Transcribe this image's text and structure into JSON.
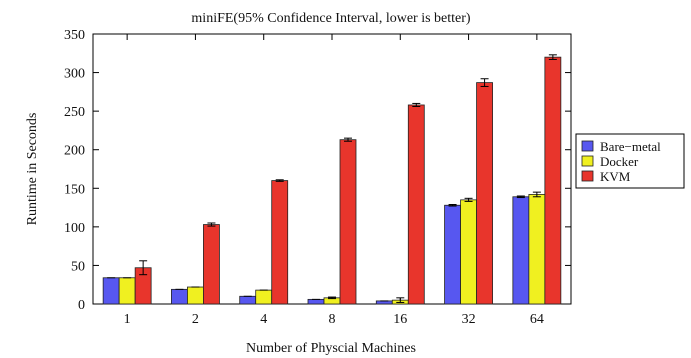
{
  "chart_data": {
    "type": "bar",
    "title": "miniFE(95% Confidence Interval, lower is better)",
    "xlabel": "Number of Physcial Machines",
    "ylabel": "Runtime in Seconds",
    "ylim": [
      0,
      350
    ],
    "yticks": [
      0,
      50,
      100,
      150,
      200,
      250,
      300,
      350
    ],
    "categories": [
      "1",
      "2",
      "4",
      "8",
      "16",
      "32",
      "64"
    ],
    "grid": false,
    "legend_position": "right",
    "series": [
      {
        "name": "Bare−metal",
        "color": "#5757f0",
        "values": [
          34,
          19,
          10,
          6,
          4,
          128,
          139
        ],
        "errors": [
          0,
          0,
          0,
          0,
          0,
          1,
          1
        ]
      },
      {
        "name": "Docker",
        "color": "#f0f020",
        "values": [
          34,
          22,
          18,
          8,
          5,
          135,
          142
        ],
        "errors": [
          0,
          0,
          0,
          1,
          3,
          2,
          3
        ]
      },
      {
        "name": "KVM",
        "color": "#e8352c",
        "values": [
          47,
          103,
          160,
          213,
          258,
          287,
          320
        ],
        "errors": [
          9,
          2,
          1,
          2,
          2,
          5,
          3
        ]
      }
    ]
  }
}
